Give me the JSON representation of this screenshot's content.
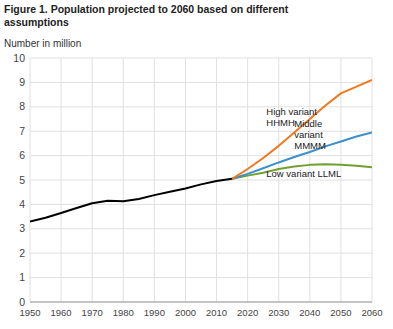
{
  "chart_data": {
    "type": "line",
    "title": "Figure 1. Population projected to 2060 based on different\nassumptions",
    "y_label": "Number in million",
    "xlim": [
      1950,
      2060
    ],
    "ylim": [
      0,
      10
    ],
    "xticks": [
      1950,
      1960,
      1970,
      1980,
      1990,
      2000,
      2010,
      2020,
      2030,
      2040,
      2050,
      2060
    ],
    "yticks": [
      0,
      1,
      2,
      3,
      4,
      5,
      6,
      7,
      8,
      9,
      10
    ],
    "grid": true,
    "series": [
      {
        "color": "#000000",
        "x": [
          1950,
          1955,
          1960,
          1965,
          1970,
          1975,
          1980,
          1985,
          1990,
          1995,
          2000,
          2005,
          2010,
          2015
        ],
        "values": [
          3.3,
          3.45,
          3.65,
          3.85,
          4.05,
          4.15,
          4.13,
          4.22,
          4.38,
          4.52,
          4.65,
          4.82,
          4.96,
          5.05
        ]
      },
      {
        "color": "#f07820",
        "x": [
          2015,
          2020,
          2025,
          2030,
          2035,
          2040,
          2045,
          2050,
          2055,
          2060
        ],
        "values": [
          5.05,
          5.45,
          5.9,
          6.4,
          6.95,
          7.5,
          8.05,
          8.55,
          8.83,
          9.1
        ]
      },
      {
        "color": "#3a90cc",
        "x": [
          2015,
          2020,
          2025,
          2030,
          2035,
          2040,
          2045,
          2050,
          2055,
          2060
        ],
        "values": [
          5.05,
          5.25,
          5.48,
          5.72,
          5.94,
          6.15,
          6.38,
          6.58,
          6.78,
          6.95
        ]
      },
      {
        "color": "#70a030",
        "x": [
          2015,
          2020,
          2025,
          2030,
          2035,
          2040,
          2045,
          2050,
          2055,
          2060
        ],
        "values": [
          5.05,
          5.18,
          5.3,
          5.45,
          5.55,
          5.62,
          5.65,
          5.62,
          5.58,
          5.52
        ]
      }
    ],
    "annotations": [
      {
        "text": "High variant\nHHMH",
        "x": 2026,
        "y": 7.6
      },
      {
        "text": "Middle\nvariant\nMMMM",
        "x": 2035,
        "y": 6.85
      },
      {
        "text": "Low variant LLML",
        "x": 2026,
        "y": 5.28
      }
    ]
  }
}
